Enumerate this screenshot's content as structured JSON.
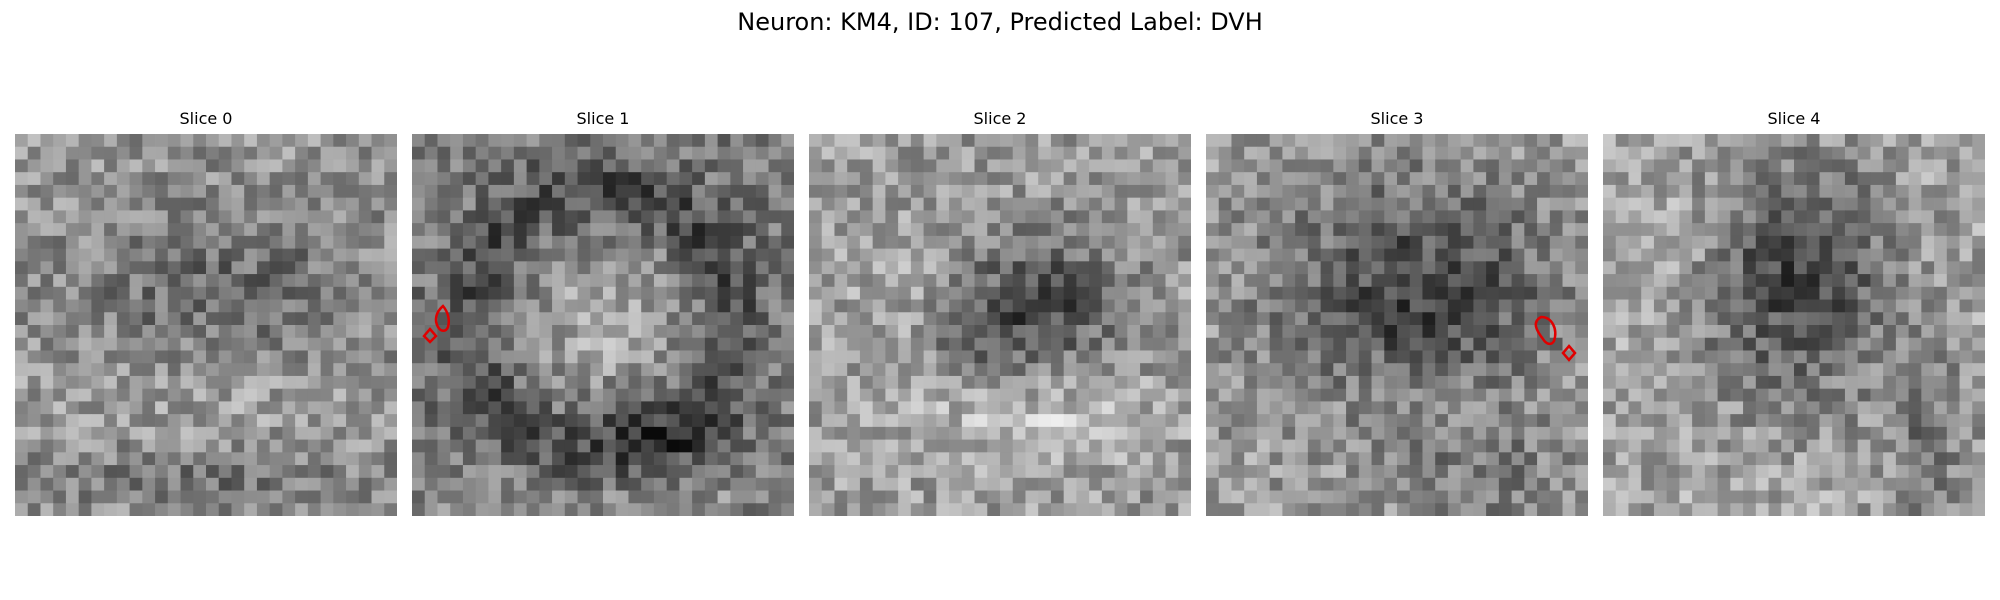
{
  "figure": {
    "title": "Neuron: KM4, ID: 107, Predicted Label: DVH"
  },
  "slices": [
    {
      "title": "Slice 0",
      "pattern": "diffuse-dark-band",
      "has_contour": false
    },
    {
      "title": "Slice 1",
      "pattern": "dark-ring-bright-center",
      "has_contour": true
    },
    {
      "title": "Slice 2",
      "pattern": "dark-center-right",
      "has_contour": false
    },
    {
      "title": "Slice 3",
      "pattern": "dark-center-blob",
      "has_contour": true
    },
    {
      "title": "Slice 4",
      "pattern": "dark-upper-center",
      "has_contour": false
    }
  ],
  "colors": {
    "background": "#ffffff",
    "contour": "#e00000"
  }
}
